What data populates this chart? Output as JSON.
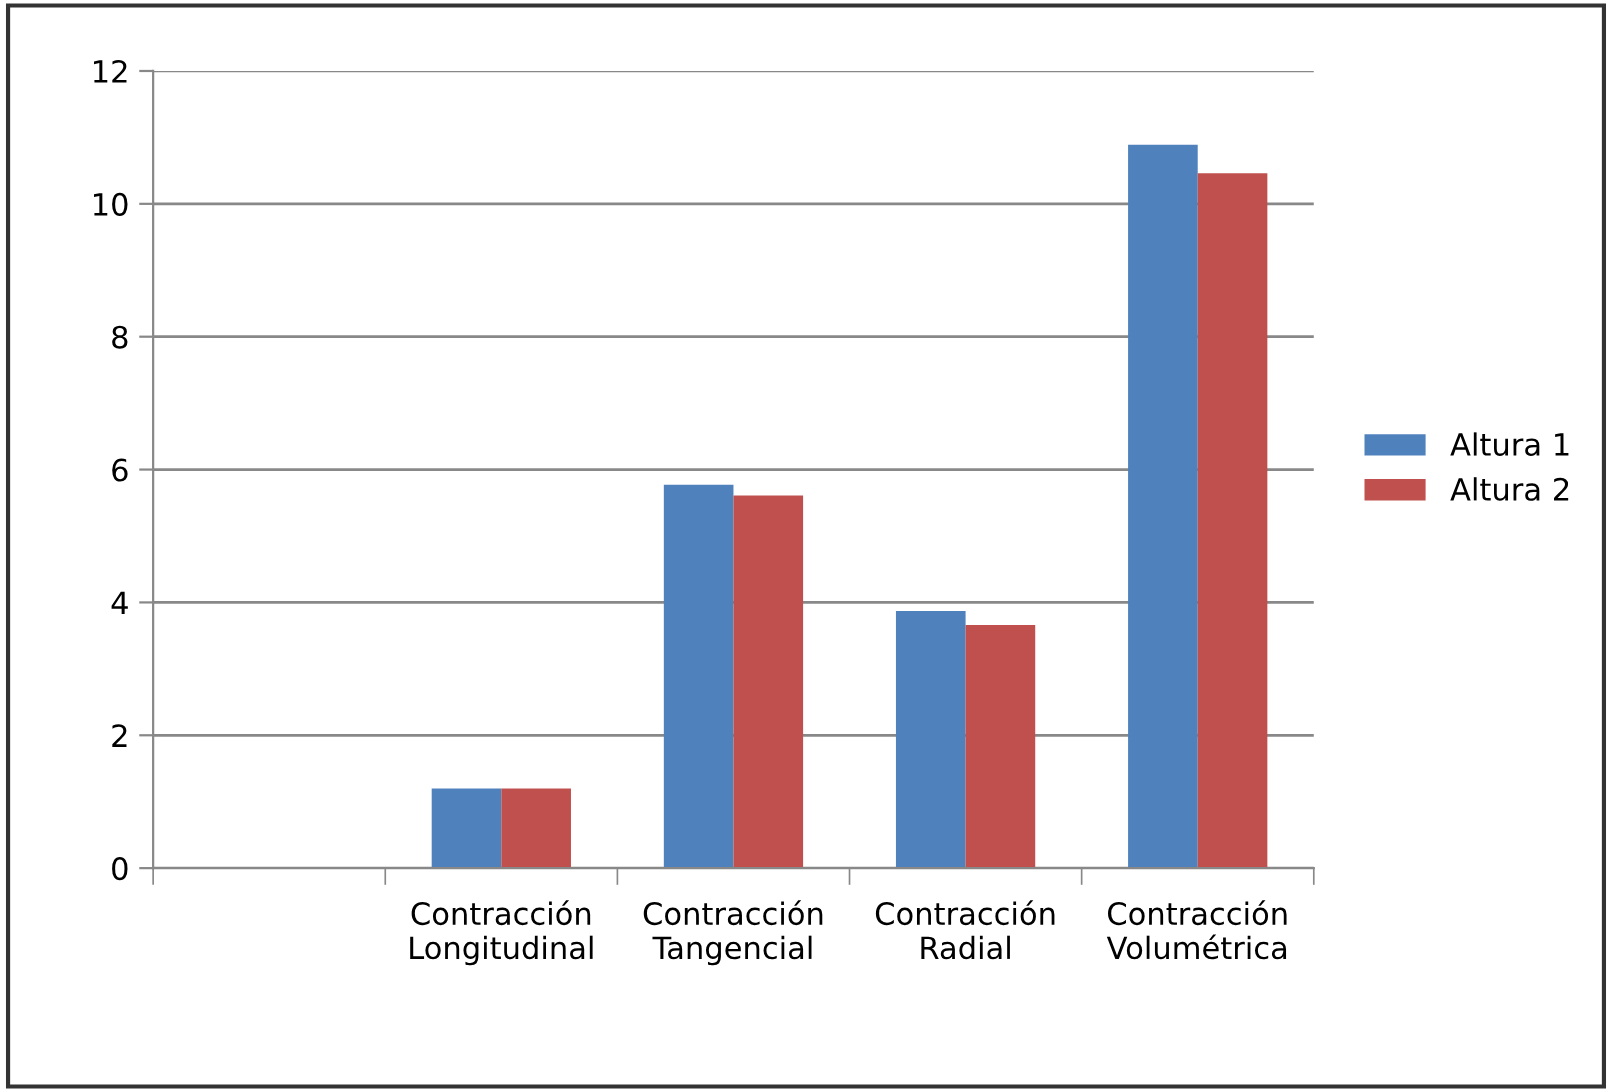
{
  "chart_data": {
    "type": "bar",
    "categories": [
      null,
      "Contracción\nLongitudinal",
      "Contracción\nTangencial",
      "Contracción\nRadial",
      "Contracción\nVolumétrica"
    ],
    "series": [
      {
        "name": "Altura 1",
        "color": "#4f81bd",
        "values": [
          null,
          1.2,
          5.77,
          3.87,
          10.89
        ]
      },
      {
        "name": "Altura 2",
        "color": "#c0504d",
        "values": [
          null,
          1.2,
          5.61,
          3.66,
          10.46
        ]
      }
    ],
    "ylim": [
      0,
      12
    ],
    "yticks": [
      0,
      2,
      4,
      6,
      8,
      10,
      12
    ],
    "grid": "y",
    "legend": "right"
  }
}
